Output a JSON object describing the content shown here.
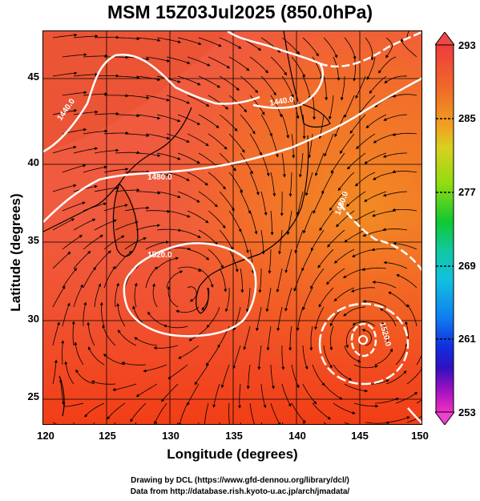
{
  "title": "MSM 15Z03Jul2025 (850.0hPa)",
  "axes": {
    "xlabel": "Longitude (degrees)",
    "ylabel": "Latitude  (degrees)",
    "x_ticks": [
      "120",
      "125",
      "130",
      "135",
      "140",
      "145",
      "150"
    ],
    "y_ticks": [
      "45",
      "40",
      "35",
      "30",
      "25"
    ]
  },
  "chart_data": {
    "type": "heatmap",
    "xlim": [
      120,
      150
    ],
    "ylim": [
      22.4,
      47.6
    ],
    "x_ticks": [
      120,
      125,
      130,
      135,
      140,
      145,
      150
    ],
    "y_ticks": [
      25,
      30,
      35,
      40,
      45
    ],
    "colorbar": {
      "min": 253,
      "max": 293,
      "tick_values": [
        253,
        261,
        269,
        277,
        285,
        293
      ],
      "tick_labels": [
        "253",
        "261",
        "269",
        "277",
        "285",
        "293"
      ]
    },
    "contours": [
      {
        "label": "1440.0"
      },
      {
        "label": "1440.0"
      },
      {
        "label": "1480.0"
      },
      {
        "label": "1520.0"
      },
      {
        "label": "1480.0"
      },
      {
        "label": "1520.0"
      }
    ]
  },
  "colors": {
    "field_warm": "#f26040",
    "field_hot": "#f53515",
    "field_orange": "#f28020",
    "contour": "#ffffff",
    "streamline": "#000000"
  },
  "credits": {
    "line1": "Drawing by DCL (https://www.gfd-dennou.org/library/dcl/)",
    "line2": "Data from http://database.rish.kyoto-u.ac.jp/arch/jmadata/"
  }
}
